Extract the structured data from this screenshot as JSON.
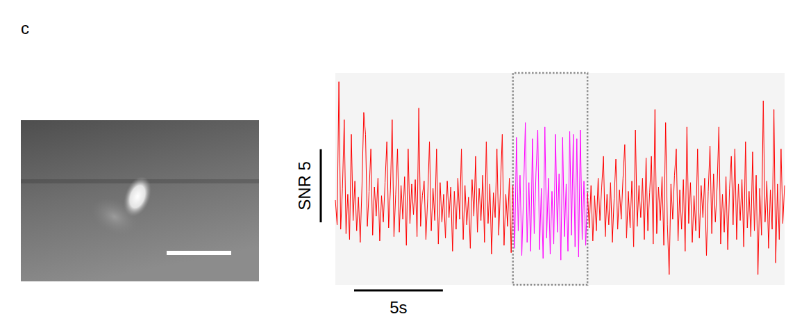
{
  "panel": "c",
  "chart_data": {
    "type": "line",
    "color": "#ff0000",
    "tick_labels": false,
    "xlim": [
      0,
      25.3
    ],
    "ylim": [
      -5.3,
      9.2
    ],
    "highlight": {
      "x": [
        10.0,
        14.2
      ],
      "color": "#ff00ff"
    },
    "scale_bars": {
      "x": {
        "value": 5,
        "label": "5s"
      },
      "y": {
        "value": 5,
        "label": "SNR 5"
      }
    },
    "x": [
      0,
      0.1,
      0.2,
      0.3,
      0.4,
      0.5,
      0.6,
      0.7,
      0.8,
      0.9,
      1,
      1.1,
      1.2,
      1.3,
      1.4,
      1.5,
      1.6,
      1.7,
      1.8,
      1.9,
      2,
      2.1,
      2.2,
      2.3,
      2.4,
      2.5,
      2.6,
      2.7,
      2.8,
      2.9,
      3,
      3.1,
      3.2,
      3.3,
      3.4,
      3.5,
      3.6,
      3.7,
      3.8,
      3.9,
      4,
      4.1,
      4.2,
      4.3,
      4.4,
      4.5,
      4.6,
      4.7,
      4.8,
      4.9,
      5,
      5.1,
      5.2,
      5.3,
      5.4,
      5.5,
      5.6,
      5.7,
      5.8,
      5.9,
      6,
      6.1,
      6.2,
      6.3,
      6.4,
      6.5,
      6.6,
      6.7,
      6.8,
      6.9,
      7,
      7.1,
      7.2,
      7.3,
      7.4,
      7.5,
      7.6,
      7.7,
      7.8,
      7.9,
      8,
      8.1,
      8.2,
      8.3,
      8.4,
      8.5,
      8.6,
      8.7,
      8.8,
      8.9,
      9,
      9.1,
      9.2,
      9.3,
      9.4,
      9.5,
      9.6,
      9.7,
      9.8,
      9.9,
      10,
      10.1,
      10.2,
      10.3,
      10.4,
      10.5,
      10.6,
      10.7,
      10.8,
      10.9,
      11,
      11.1,
      11.2,
      11.3,
      11.4,
      11.5,
      11.6,
      11.7,
      11.8,
      11.9,
      12,
      12.1,
      12.2,
      12.3,
      12.4,
      12.5,
      12.6,
      12.7,
      12.8,
      12.9,
      13,
      13.1,
      13.2,
      13.3,
      13.4,
      13.5,
      13.6,
      13.7,
      13.8,
      13.9,
      14,
      14.1,
      14.2,
      14.3,
      14.4,
      14.5,
      14.6,
      14.7,
      14.8,
      14.9,
      15,
      15.1,
      15.2,
      15.3,
      15.4,
      15.5,
      15.6,
      15.7,
      15.8,
      15.9,
      16,
      16.1,
      16.2,
      16.3,
      16.4,
      16.5,
      16.6,
      16.7,
      16.8,
      16.9,
      17,
      17.1,
      17.2,
      17.3,
      17.4,
      17.5,
      17.6,
      17.7,
      17.8,
      17.9,
      18,
      18.1,
      18.2,
      18.3,
      18.4,
      18.5,
      18.6,
      18.7,
      18.8,
      18.9,
      19,
      19.1,
      19.2,
      19.3,
      19.4,
      19.5,
      19.6,
      19.7,
      19.8,
      19.9,
      20,
      20.1,
      20.2,
      20.3,
      20.4,
      20.5,
      20.6,
      20.7,
      20.8,
      20.9,
      21,
      21.1,
      21.2,
      21.3,
      21.4,
      21.5,
      21.6,
      21.7,
      21.8,
      21.9,
      22,
      22.1,
      22.2,
      22.3,
      22.4,
      22.5,
      22.6,
      22.7,
      22.8,
      22.9,
      23,
      23.1,
      23.2,
      23.3,
      23.4,
      23.5,
      23.6,
      23.7,
      23.8,
      23.9,
      24,
      24.1,
      24.2,
      24.3,
      24.4,
      24.5,
      24.6,
      24.7,
      24.8,
      24.9,
      25,
      25.1,
      25.2,
      25.3
    ],
    "values": [
      0.5,
      -1.2,
      8.6,
      -1.5,
      1.3,
      6.0,
      -1.8,
      0.9,
      -2.2,
      5.0,
      -0.9,
      1.8,
      -1.6,
      0.7,
      -2.4,
      1.5,
      6.5,
      5.0,
      -1.3,
      1.1,
      4.0,
      -1.9,
      1.4,
      -0.6,
      2.0,
      -2.3,
      0.8,
      -1.0,
      1.7,
      4.5,
      -1.4,
      1.2,
      6.0,
      -2.0,
      0.9,
      4.0,
      -1.7,
      1.5,
      -0.8,
      2.1,
      -2.6,
      4.0,
      -1.1,
      1.6,
      -0.5,
      1.9,
      -2.0,
      6.8,
      -1.3,
      0.8,
      1.8,
      -2.2,
      0.6,
      4.5,
      -1.6,
      1.3,
      -0.9,
      4.0,
      -2.5,
      1.7,
      -1.0,
      0.9,
      -2.1,
      1.8,
      -0.7,
      1.4,
      -3.0,
      1.1,
      -1.5,
      2.0,
      -0.8,
      4.0,
      -2.2,
      1.5,
      -1.2,
      0.7,
      -2.8,
      1.9,
      -0.6,
      3.5,
      -1.7,
      1.3,
      -0.9,
      2.2,
      -2.4,
      4.5,
      -1.1,
      1.6,
      -3.2,
      1.0,
      -0.7,
      4.0,
      -1.9,
      1.4,
      5.0,
      -2.6,
      0.9,
      -1.3,
      2.0,
      -3.1,
      1.5,
      -2.8,
      4.8,
      -1.6,
      2.2,
      -3.3,
      1.0,
      5.8,
      -2.4,
      1.7,
      -3.0,
      4.7,
      -1.8,
      2.4,
      5.3,
      -2.9,
      1.3,
      -3.5,
      5.5,
      -2.1,
      2.0,
      -3.2,
      1.1,
      -2.5,
      5.0,
      -1.7,
      2.3,
      -3.6,
      4.8,
      -2.0,
      1.6,
      -3.0,
      5.2,
      -1.9,
      5.0,
      -2.7,
      4.7,
      -3.4,
      5.3,
      -2.2,
      1.8,
      -2.6,
      1.0,
      -1.4,
      1.5,
      -2.3,
      0.8,
      -1.6,
      2.0,
      -0.9,
      1.4,
      3.5,
      -2.0,
      0.9,
      -1.2,
      1.7,
      -2.4,
      0.6,
      3.3,
      -1.5,
      1.2,
      -0.8,
      2.0,
      4.3,
      -2.1,
      1.1,
      -1.4,
      1.8,
      -2.7,
      5.3,
      -1.3,
      1.5,
      -0.7,
      2.0,
      -2.2,
      3.4,
      -1.6,
      1.0,
      3.5,
      -2.5,
      6.7,
      -1.8,
      1.4,
      -0.9,
      2.1,
      -2.6,
      5.8,
      -1.2,
      -4.6,
      1.6,
      -0.8,
      2.2,
      4.0,
      -2.3,
      1.2,
      -1.5,
      1.9,
      -3.0,
      5.5,
      -1.1,
      1.7,
      -2.4,
      0.8,
      -1.6,
      4.0,
      -2.1,
      1.5,
      -0.7,
      2.0,
      -3.3,
      1.1,
      4.2,
      -1.8,
      2.3,
      -1.0,
      1.4,
      5.5,
      -2.5,
      0.9,
      -1.7,
      2.1,
      -2.9,
      1.3,
      3.5,
      -1.2,
      4.0,
      -2.2,
      1.6,
      -0.9,
      1.9,
      -2.7,
      4.5,
      -1.4,
      1.1,
      -2.0,
      3.8,
      -1.6,
      2.2,
      -4.6,
      1.3,
      -1.9,
      7.3,
      -1.0,
      1.8,
      -2.8,
      1.2,
      -1.5,
      6.7,
      -3.8,
      1.6,
      -2.2,
      4.0,
      -1.1,
      1.5
    ]
  }
}
